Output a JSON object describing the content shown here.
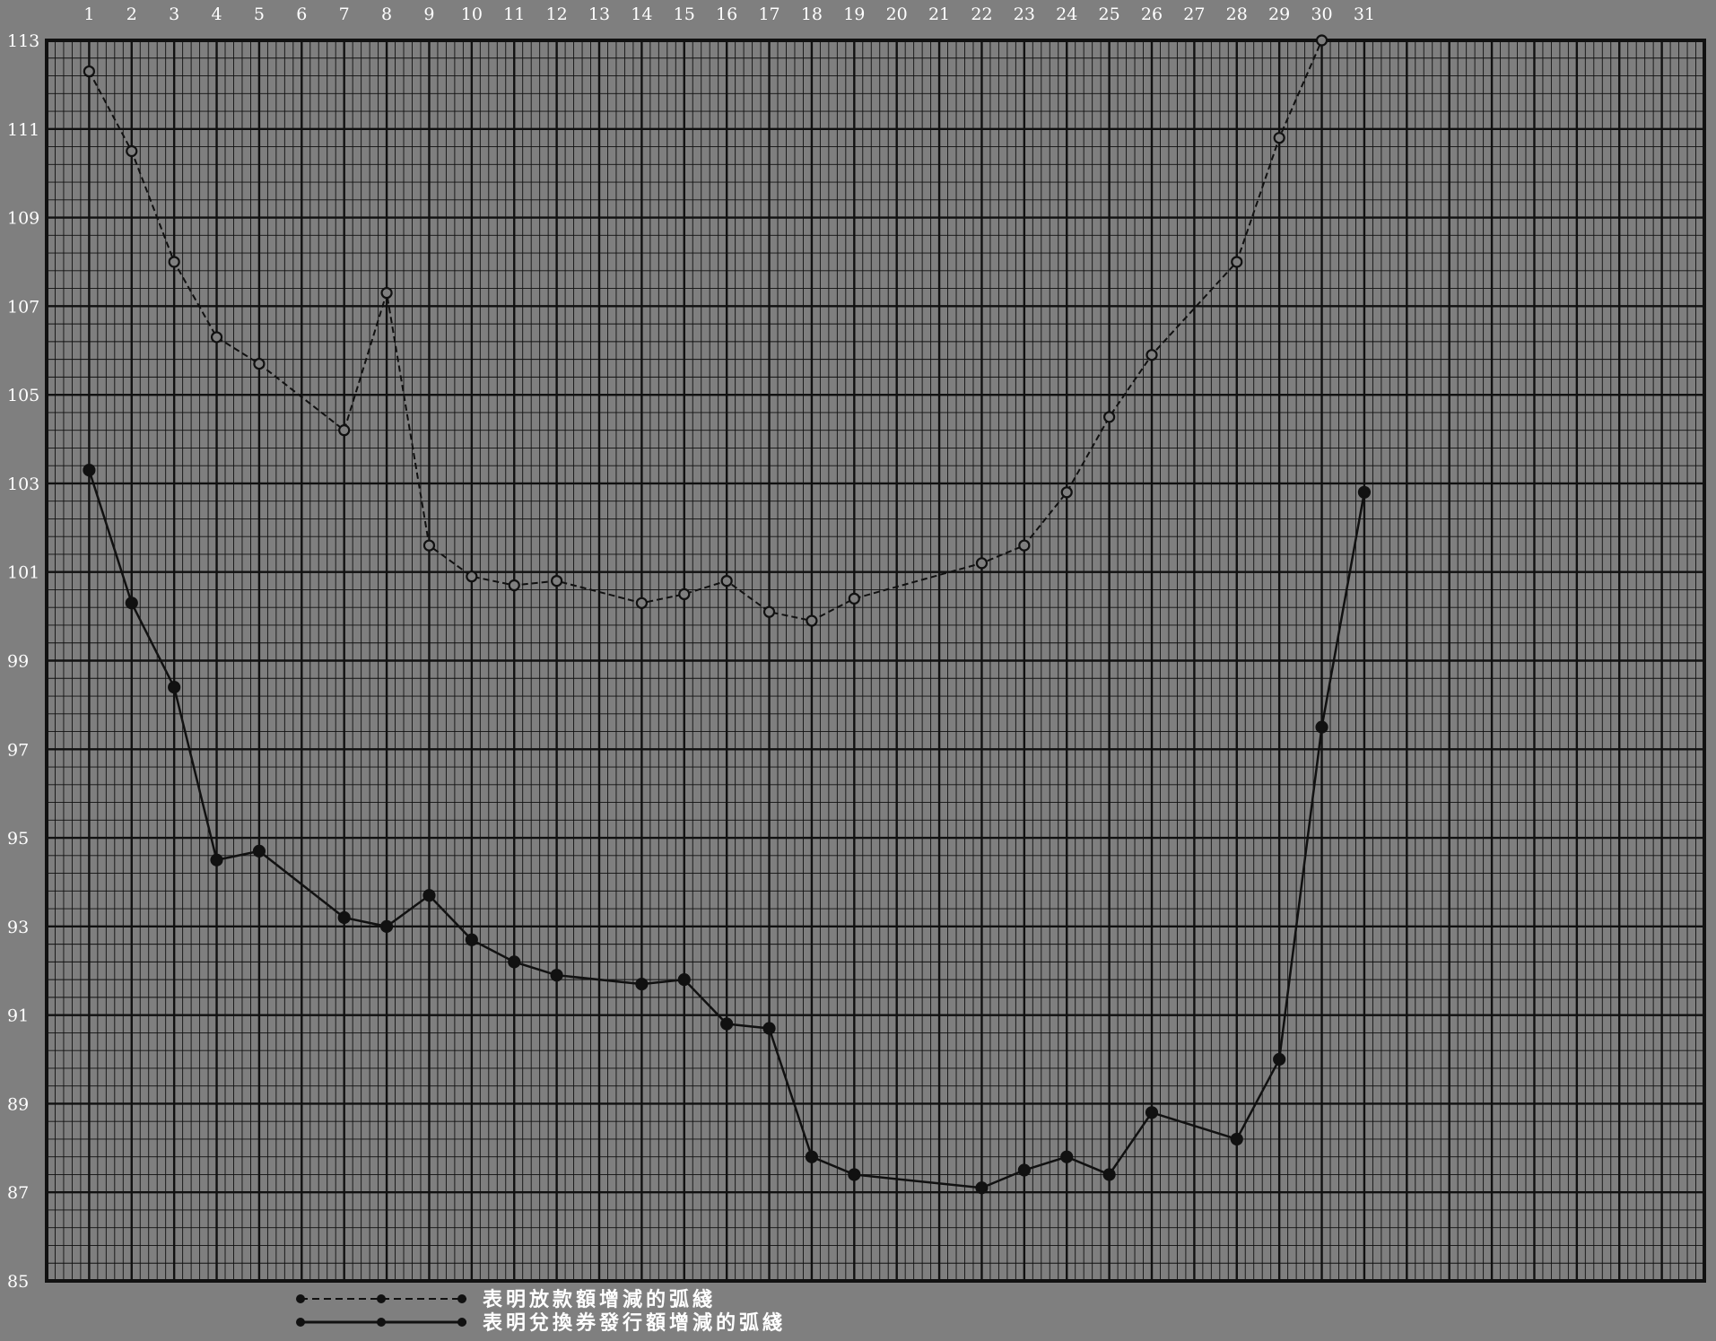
{
  "chart_data": {
    "type": "line",
    "title": "",
    "xlabel": "",
    "ylabel": "",
    "x": [
      1,
      2,
      3,
      4,
      5,
      6,
      7,
      8,
      9,
      10,
      11,
      12,
      13,
      14,
      15,
      16,
      17,
      18,
      19,
      20,
      21,
      22,
      23,
      24,
      25,
      26,
      27,
      28,
      29,
      30,
      31
    ],
    "x_tick_labels": [
      "1",
      "2",
      "3",
      "4",
      "5",
      "6",
      "7",
      "8",
      "9",
      "10",
      "11",
      "12",
      "13",
      "14",
      "15",
      "16",
      "17",
      "18",
      "19",
      "20",
      "21",
      "22",
      "23",
      "24",
      "25",
      "26",
      "27",
      "28",
      "29",
      "30",
      "31"
    ],
    "y_tick_labels": [
      "113",
      "111",
      "109",
      "107",
      "105",
      "103",
      "101",
      "99",
      "97",
      "95",
      "93",
      "91",
      "89",
      "87",
      "85"
    ],
    "xlim": [
      0,
      39
    ],
    "ylim": [
      85,
      113
    ],
    "grid": true,
    "legend_position": "bottom-left",
    "series": [
      {
        "name": "表明放款額增減的弧綫",
        "style": "dashed",
        "points": [
          [
            1,
            112.3
          ],
          [
            2,
            110.5
          ],
          [
            3,
            108.0
          ],
          [
            4,
            106.3
          ],
          [
            5,
            105.7
          ],
          [
            7,
            104.2
          ],
          [
            8,
            107.3
          ],
          [
            9,
            101.6
          ],
          [
            10,
            100.9
          ],
          [
            11,
            100.7
          ],
          [
            12,
            100.8
          ],
          [
            14,
            100.3
          ],
          [
            15,
            100.5
          ],
          [
            16,
            100.8
          ],
          [
            17,
            100.1
          ],
          [
            18,
            99.9
          ],
          [
            19,
            100.4
          ],
          [
            22,
            101.2
          ],
          [
            23,
            101.6
          ],
          [
            24,
            102.8
          ],
          [
            25,
            104.5
          ],
          [
            26,
            105.9
          ],
          [
            28,
            108.0
          ],
          [
            29,
            110.8
          ],
          [
            30,
            113.0
          ]
        ]
      },
      {
        "name": "表明兌換券發行額增減的弧綫",
        "style": "solid",
        "points": [
          [
            1,
            103.3
          ],
          [
            2,
            100.3
          ],
          [
            3,
            98.4
          ],
          [
            4,
            94.5
          ],
          [
            5,
            94.7
          ],
          [
            7,
            93.2
          ],
          [
            8,
            93.0
          ],
          [
            9,
            93.7
          ],
          [
            10,
            92.7
          ],
          [
            11,
            92.2
          ],
          [
            12,
            91.9
          ],
          [
            14,
            91.7
          ],
          [
            15,
            91.8
          ],
          [
            16,
            90.8
          ],
          [
            17,
            90.7
          ],
          [
            18,
            87.8
          ],
          [
            19,
            87.4
          ],
          [
            22,
            87.1
          ],
          [
            23,
            87.5
          ],
          [
            24,
            87.8
          ],
          [
            25,
            87.4
          ],
          [
            26,
            88.8
          ],
          [
            28,
            88.2
          ],
          [
            29,
            90.0
          ],
          [
            30,
            97.5
          ],
          [
            31,
            102.8
          ]
        ]
      }
    ],
    "colors": {
      "background": "#7f7f7f",
      "grid": "#111111",
      "line": "#111111",
      "text": "#ffffff"
    }
  }
}
